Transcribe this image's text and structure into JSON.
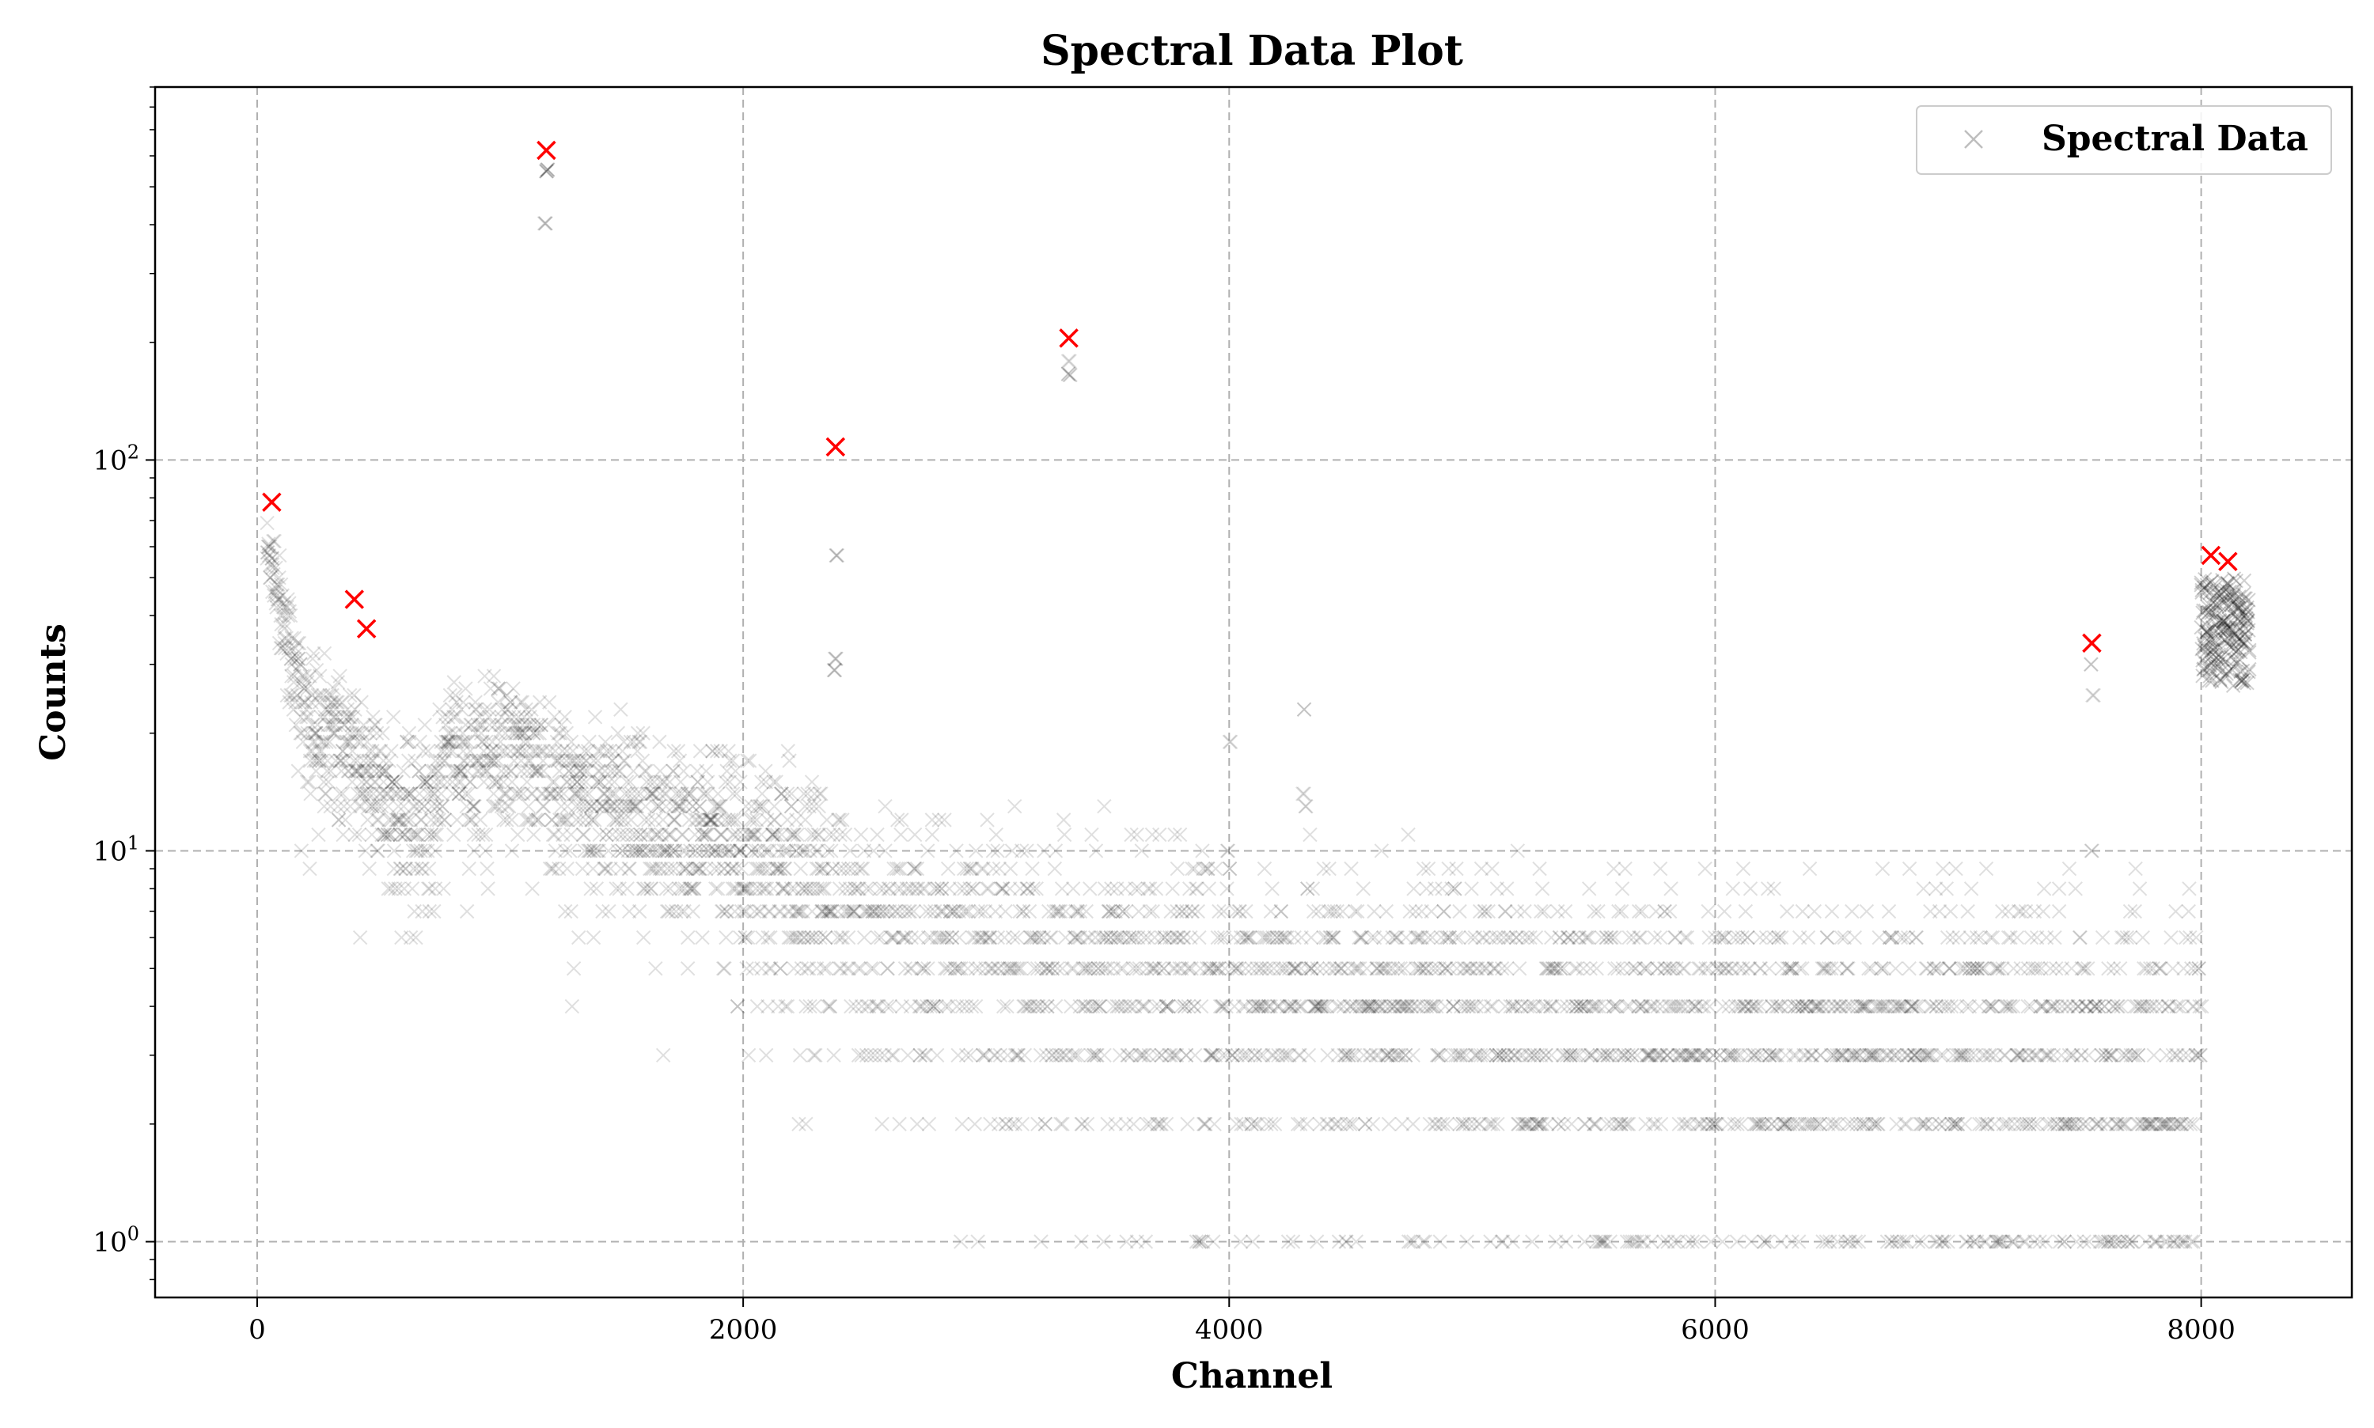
{
  "chart_data": {
    "type": "scatter",
    "title": "Spectral Data Plot",
    "xlabel": "Channel",
    "ylabel": "Counts",
    "xlim": [
      -420,
      8620
    ],
    "ylim": [
      0.72,
      900
    ],
    "yscale": "log",
    "grid": true,
    "legend_position": "top-right",
    "x_ticks": [
      {
        "value": 0,
        "label": "0"
      },
      {
        "value": 2000,
        "label": "2000"
      },
      {
        "value": 4000,
        "label": "4000"
      },
      {
        "value": 6000,
        "label": "6000"
      },
      {
        "value": 8000,
        "label": "8000"
      }
    ],
    "y_ticks": [
      {
        "value": 1,
        "base": "10",
        "exp": "0"
      },
      {
        "value": 10,
        "base": "10",
        "exp": "1"
      },
      {
        "value": 100,
        "base": "10",
        "exp": "2"
      }
    ],
    "colors": {
      "data_marker": "#000000",
      "peak_marker": "#ff0000",
      "grid": "#b0b0b0",
      "legend_border": "#cccccc"
    },
    "series": [
      {
        "name": "Spectral Data",
        "marker": "x",
        "color": "#000000",
        "alpha": 0.12,
        "envelope": [
          [
            60,
            58
          ],
          [
            100,
            42
          ],
          [
            150,
            30
          ],
          [
            200,
            23
          ],
          [
            300,
            19
          ],
          [
            400,
            18
          ],
          [
            500,
            15
          ],
          [
            600,
            12
          ],
          [
            700,
            13
          ],
          [
            800,
            18
          ],
          [
            900,
            17
          ],
          [
            1000,
            19
          ],
          [
            1100,
            19
          ],
          [
            1200,
            16
          ],
          [
            1300,
            14
          ],
          [
            1500,
            13
          ],
          [
            1700,
            12
          ],
          [
            1900,
            11
          ],
          [
            2100,
            10
          ],
          [
            2300,
            8.5
          ],
          [
            2500,
            7
          ],
          [
            2700,
            6.5
          ],
          [
            3000,
            6
          ],
          [
            3500,
            5.5
          ],
          [
            4000,
            4.8
          ],
          [
            5000,
            4.2
          ],
          [
            6000,
            3.8
          ],
          [
            7000,
            3.5
          ],
          [
            7500,
            3.3
          ],
          [
            8000,
            3.2
          ]
        ],
        "peaks": [
          {
            "x": 1190,
            "y": 600,
            "width": 8
          },
          {
            "x": 2380,
            "y": 100,
            "width": 8
          },
          {
            "x": 3340,
            "y": 190,
            "width": 8
          },
          {
            "x": 4000,
            "y": 20,
            "width": 6
          },
          {
            "x": 4310,
            "y": 25,
            "width": 6
          },
          {
            "x": 7550,
            "y": 30,
            "width": 6
          }
        ],
        "cluster": {
          "x_start": 8000,
          "x_end": 8200,
          "center": 38,
          "spread": [
            26,
            50
          ]
        }
      },
      {
        "name": "",
        "marker": "x",
        "color": "#ff0000",
        "points": [
          {
            "x": 60,
            "y": 78
          },
          {
            "x": 400,
            "y": 44
          },
          {
            "x": 450,
            "y": 37
          },
          {
            "x": 1190,
            "y": 620
          },
          {
            "x": 2380,
            "y": 108
          },
          {
            "x": 3340,
            "y": 205
          },
          {
            "x": 7550,
            "y": 34
          },
          {
            "x": 8040,
            "y": 57
          },
          {
            "x": 8110,
            "y": 55
          }
        ]
      }
    ],
    "legend": {
      "entries": [
        {
          "label": "Spectral Data",
          "marker": "x",
          "color": "#000000",
          "alpha": 0.12
        }
      ]
    }
  }
}
